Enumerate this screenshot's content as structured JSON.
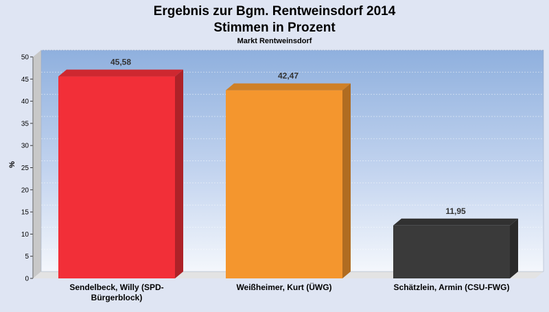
{
  "chart_data": {
    "type": "bar",
    "title": "Ergebnis zur Bgm. Rentweinsdorf 2014",
    "title_line2": "Stimmen in Prozent",
    "subtitle": "Markt Rentweinsdorf",
    "ylabel": "%",
    "xlabel": "",
    "ylim": [
      0,
      50
    ],
    "yticks": [
      "0",
      "5",
      "10",
      "15",
      "20",
      "25",
      "30",
      "35",
      "40",
      "45",
      "50"
    ],
    "categories": [
      [
        "Sendelbeck, Willy (SPD-",
        "Bürgerblock)"
      ],
      [
        "Weißheimer, Kurt (ÜWG)"
      ],
      [
        "Schätzlein, Armin (CSU-FWG)"
      ]
    ],
    "values": [
      45.58,
      42.47,
      11.95
    ],
    "value_labels": [
      "45,58",
      "42,47",
      "11,95"
    ],
    "colors": [
      "#f22f38",
      "#f4962e",
      "#3a3a3a"
    ],
    "grid": true,
    "legend": "none"
  }
}
